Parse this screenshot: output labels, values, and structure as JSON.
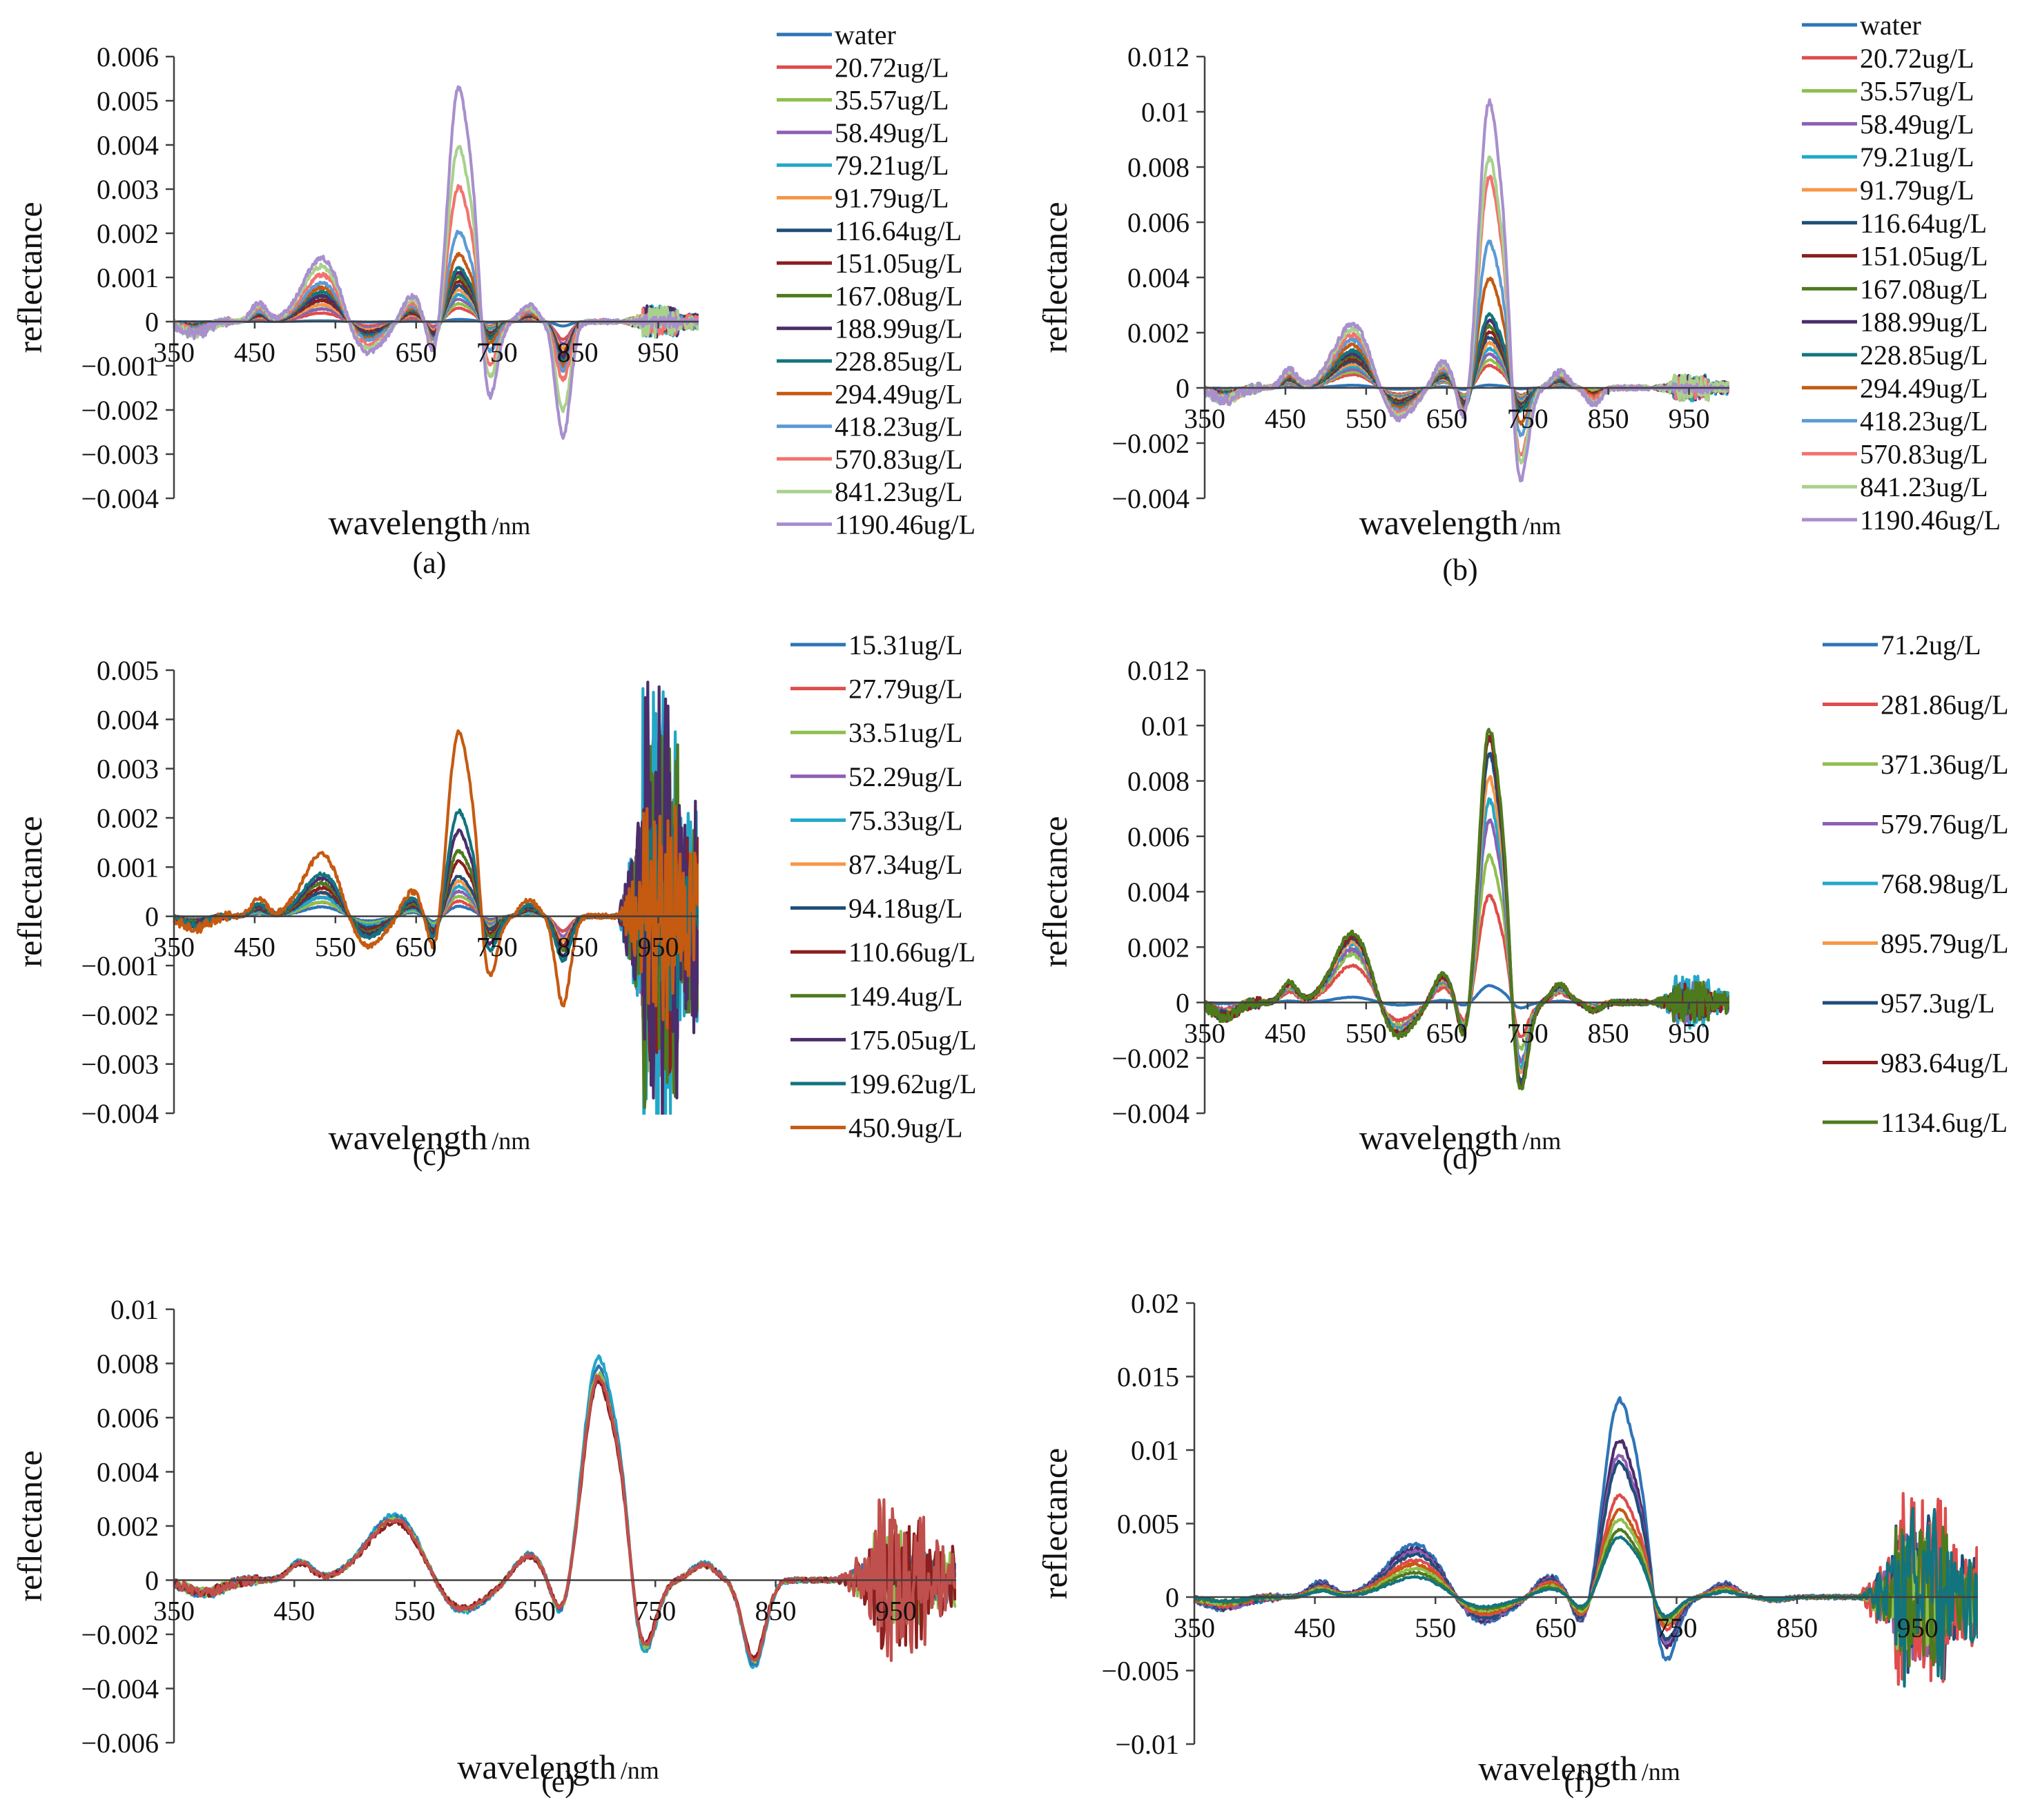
{
  "palette": [
    "#2e75b6",
    "#e04c4c",
    "#8dc04d",
    "#8e5fb4",
    "#21a8c8",
    "#f79646",
    "#1f4e79",
    "#8b1e1e",
    "#4e7a1e",
    "#4b2d6b",
    "#13747e",
    "#c55a11"
  ],
  "chart_data": [
    {
      "id": "a",
      "type": "line",
      "caption": "(a)",
      "xlabel": "wavelength",
      "xunit": "/nm",
      "ylabel": "reflectance",
      "xlim": [
        350,
        1000
      ],
      "ylim": [
        -0.004,
        0.006
      ],
      "xticks": [
        "350",
        "450",
        "550",
        "650",
        "750",
        "850",
        "950"
      ],
      "yticks": [
        "0.006",
        "0.005",
        "0.004",
        "0.003",
        "0.002",
        "0.001",
        "0",
        "−0.001",
        "−0.002",
        "−0.003",
        "−0.004"
      ],
      "legend": [
        "water",
        "20.72ug/L",
        "35.57ug/L",
        "58.49ug/L",
        "79.21ug/L",
        "91.79ug/L",
        "116.64ug/L",
        "151.05ug/L",
        "167.08ug/L",
        "188.99ug/L",
        "228.85ug/L",
        "294.49ug/L",
        "418.23ug/L",
        "570.83ug/L",
        "841.23ug/L",
        "1190.46ug/L"
      ],
      "series_colors": [
        "#2e75b6",
        "#e04c4c",
        "#8dc04d",
        "#8e5fb4",
        "#21a8c8",
        "#f79646",
        "#1f4e79",
        "#8b1e1e",
        "#4e7a1e",
        "#4b2d6b",
        "#13747e",
        "#c55a11",
        "#5b9bd5",
        "#f4726e",
        "#a9d18e",
        "#a88fcd"
      ],
      "peak_700": [
        5e-05,
        0.0003,
        0.0004,
        0.0005,
        0.0006,
        0.0007,
        0.0008,
        0.0009,
        0.001,
        0.0011,
        0.0012,
        0.0015,
        0.002,
        0.003,
        0.0039,
        0.0052
      ],
      "peak_540": [
        2e-05,
        0.0002,
        0.0003,
        0.0003,
        0.0004,
        0.0004,
        0.0005,
        0.0005,
        0.0006,
        0.0006,
        0.0007,
        0.0008,
        0.0009,
        0.0011,
        0.0013,
        0.0015
      ],
      "dip_830": [
        -0.0001,
        -0.0004,
        -0.0005,
        -0.0005,
        -0.0006,
        -0.0006,
        -0.0007,
        -0.0007,
        -0.0008,
        -0.0008,
        -0.0009,
        -0.001,
        -0.0011,
        -0.0013,
        -0.002,
        -0.0026
      ],
      "noise": 0.0003
    },
    {
      "id": "b",
      "type": "line",
      "caption": "(b)",
      "xlabel": "wavelength",
      "xunit": "/nm",
      "ylabel": "reflectance",
      "xlim": [
        350,
        1000
      ],
      "ylim": [
        -0.004,
        0.012
      ],
      "xticks": [
        "350",
        "450",
        "550",
        "650",
        "750",
        "850",
        "950"
      ],
      "yticks": [
        "0.012",
        "0.01",
        "0.008",
        "0.006",
        "0.004",
        "0.002",
        "0",
        "−0.002",
        "−0.004"
      ],
      "legend": [
        "water",
        "20.72ug/L",
        "35.57ug/L",
        "58.49ug/L",
        "79.21ug/L",
        "91.79ug/L",
        "116.64ug/L",
        "151.05ug/L",
        "167.08ug/L",
        "188.99ug/L",
        "228.85ug/L",
        "294.49ug/L",
        "418.23ug/L",
        "570.83ug/L",
        "841.23ug/L",
        "1190.46ug/L"
      ],
      "series_colors": [
        "#2e75b6",
        "#e04c4c",
        "#8dc04d",
        "#8e5fb4",
        "#21a8c8",
        "#f79646",
        "#1f4e79",
        "#8b1e1e",
        "#4e7a1e",
        "#4b2d6b",
        "#13747e",
        "#c55a11",
        "#5b9bd5",
        "#f4726e",
        "#a9d18e",
        "#a88fcd"
      ],
      "peak_700": [
        0.0001,
        0.0008,
        0.001,
        0.0012,
        0.0014,
        0.0016,
        0.0018,
        0.002,
        0.0022,
        0.0024,
        0.0026,
        0.0039,
        0.0052,
        0.0075,
        0.0082,
        0.0102
      ],
      "peak_540": [
        0.0001,
        0.0005,
        0.0006,
        0.0007,
        0.0008,
        0.0009,
        0.001,
        0.0011,
        0.0012,
        0.0013,
        0.0014,
        0.0016,
        0.0018,
        0.002,
        0.0022,
        0.0024
      ],
      "dip_830": [
        -0.0001,
        -0.0001,
        -0.0001,
        -0.0002,
        -0.0002,
        -0.0002,
        -0.0002,
        -0.0002,
        -0.0003,
        -0.0003,
        -0.0003,
        -0.0003,
        -0.0004,
        -0.0004,
        -0.0005,
        -0.0006
      ],
      "noise": 0.0004
    },
    {
      "id": "c",
      "type": "line",
      "caption": "(c)",
      "xlabel": "wavelength",
      "xunit": "/nm",
      "ylabel": "reflectance",
      "xlim": [
        350,
        1000
      ],
      "ylim": [
        -0.004,
        0.005
      ],
      "xticks": [
        "350",
        "450",
        "550",
        "650",
        "750",
        "850",
        "950"
      ],
      "yticks": [
        "0.005",
        "0.004",
        "0.003",
        "0.002",
        "0.001",
        "0",
        "−0.001",
        "−0.002",
        "−0.003",
        "−0.004"
      ],
      "legend": [
        "15.31ug/L",
        "27.79ug/L",
        "33.51ug/L",
        "52.29ug/L",
        "75.33ug/L",
        "87.34ug/L",
        "94.18ug/L",
        "110.66ug/L",
        "149.4ug/L",
        "175.05ug/L",
        "199.62ug/L",
        "450.9ug/L"
      ],
      "series_colors": [
        "#2e75b6",
        "#e04c4c",
        "#8dc04d",
        "#8e5fb4",
        "#21a8c8",
        "#f79646",
        "#1f4e79",
        "#8b1e1e",
        "#4e7a1e",
        "#4b2d6b",
        "#13747e",
        "#c55a11"
      ],
      "peak_700": [
        0.0002,
        0.0003,
        0.0004,
        0.0005,
        0.0006,
        0.0007,
        0.0008,
        0.0011,
        0.0013,
        0.0017,
        0.0021,
        0.0037
      ],
      "peak_540": [
        0.0002,
        0.0003,
        0.0003,
        0.0004,
        0.0004,
        0.0005,
        0.0005,
        0.0006,
        0.0007,
        0.0008,
        0.0009,
        0.0013
      ],
      "dip_830": [
        -0.0003,
        -0.0003,
        -0.0004,
        -0.0004,
        -0.0005,
        -0.0005,
        -0.0006,
        -0.0006,
        -0.0007,
        -0.0008,
        -0.0009,
        -0.0018
      ],
      "noise": 0.004
    },
    {
      "id": "d",
      "type": "line",
      "caption": "(d)",
      "xlabel": "wavelength",
      "xunit": "/nm",
      "ylabel": "reflectance",
      "xlim": [
        350,
        1000
      ],
      "ylim": [
        -0.004,
        0.012
      ],
      "xticks": [
        "350",
        "450",
        "550",
        "650",
        "750",
        "850",
        "950"
      ],
      "yticks": [
        "0.012",
        "0.01",
        "0.008",
        "0.006",
        "0.004",
        "0.002",
        "0",
        "−0.002",
        "−0.004"
      ],
      "legend": [
        "71.2ug/L",
        "281.86ug/L",
        "371.36ug/L",
        "579.76ug/L",
        "768.98ug/L",
        "895.79ug/L",
        "957.3ug/L",
        "983.64ug/L",
        "1134.6ug/L"
      ],
      "series_colors": [
        "#2e75b6",
        "#e04c4c",
        "#8dc04d",
        "#8e5fb4",
        "#21a8c8",
        "#f79646",
        "#1f4e79",
        "#8b1e1e",
        "#4e7a1e"
      ],
      "peak_700": [
        0.0006,
        0.0038,
        0.0052,
        0.0065,
        0.0072,
        0.008,
        0.0088,
        0.0094,
        0.0097
      ],
      "peak_540": [
        0.0002,
        0.0014,
        0.0018,
        0.002,
        0.0022,
        0.0023,
        0.0024,
        0.0025,
        0.0026
      ],
      "dip_830": [
        -0.0001,
        -0.0002,
        -0.0002,
        -0.0002,
        -0.0002,
        -0.0002,
        -0.0003,
        -0.0003,
        -0.0003
      ],
      "noise": 0.0008
    },
    {
      "id": "e",
      "type": "line",
      "caption": "(e)",
      "xlabel": "wavelength",
      "xunit": "/nm",
      "ylabel": "reflectance",
      "xlim": [
        350,
        1000
      ],
      "ylim": [
        -0.006,
        0.01
      ],
      "xticks": [
        "350",
        "450",
        "550",
        "650",
        "750",
        "850",
        "950"
      ],
      "yticks": [
        "0.01",
        "0.008",
        "0.006",
        "0.004",
        "0.002",
        "0",
        "−0.002",
        "−0.004",
        "−0.006"
      ],
      "legend": [],
      "series_colors": [
        "#21a8c8",
        "#2e75b6",
        "#8dc04d",
        "#8b1e1e",
        "#c0504d"
      ],
      "peak_700": [
        0.0081,
        0.0077,
        0.0075,
        0.0072,
        0.0074
      ],
      "peak_540": [
        0.0025,
        0.0024,
        0.0023,
        0.0022,
        0.0023
      ],
      "dip_830": [
        -0.0032,
        -0.0031,
        -0.003,
        -0.0029,
        -0.003
      ],
      "noise": 0.0025
    },
    {
      "id": "f",
      "type": "line",
      "caption": "(f)",
      "xlabel": "wavelength",
      "xunit": "/nm",
      "ylabel": "reflectance",
      "xlim": [
        350,
        1000
      ],
      "ylim": [
        -0.01,
        0.02
      ],
      "xticks": [
        "350",
        "450",
        "550",
        "650",
        "750",
        "850",
        "950"
      ],
      "yticks": [
        "0.02",
        "0.015",
        "0.01",
        "0.005",
        "0",
        "−0.005",
        "−0.01"
      ],
      "legend": [],
      "series_colors": [
        "#2e75b6",
        "#4b2d6b",
        "#8e5fb4",
        "#1f4e79",
        "#e04c4c",
        "#c55a11",
        "#8dc04d",
        "#4e7a1e",
        "#13747e"
      ],
      "peak_700": [
        0.0132,
        0.0105,
        0.0095,
        0.009,
        0.0068,
        0.0058,
        0.0052,
        0.0045,
        0.004
      ],
      "peak_540": [
        0.0037,
        0.0034,
        0.0032,
        0.003,
        0.0026,
        0.0023,
        0.002,
        0.0017,
        0.0014
      ],
      "dip_830": [
        -0.0002,
        -0.0002,
        -0.0002,
        -0.0002,
        -0.0002,
        -0.0002,
        -0.0002,
        -0.0002,
        -0.0002
      ],
      "noise": 0.006
    }
  ]
}
